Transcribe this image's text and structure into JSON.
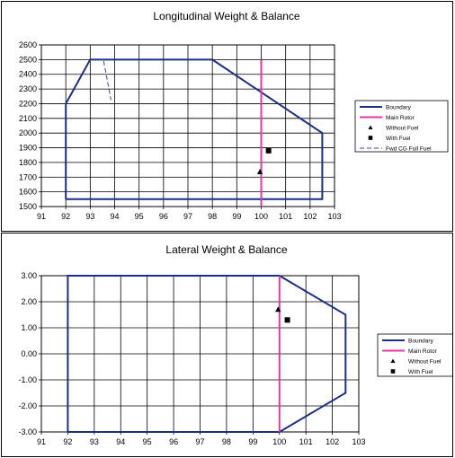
{
  "chart_data": [
    {
      "type": "line",
      "title": "Longitudinal Weight & Balance",
      "xlabel": "",
      "ylabel": "",
      "xlim": [
        91,
        103
      ],
      "ylim": [
        1500,
        2600
      ],
      "x_ticks": [
        "91",
        "92",
        "93",
        "94",
        "95",
        "96",
        "97",
        "98",
        "99",
        "100",
        "101",
        "102",
        "103"
      ],
      "y_ticks": [
        "1500",
        "1600",
        "1700",
        "1800",
        "1900",
        "2000",
        "2100",
        "2200",
        "2300",
        "2400",
        "2500",
        "2600"
      ],
      "grid": true,
      "legend_position": "right",
      "series": [
        {
          "name": "Boundary",
          "kind": "line",
          "color": "#1c2f86",
          "points": [
            [
              92,
              1550
            ],
            [
              92,
              2200
            ],
            [
              93,
              2500
            ],
            [
              98,
              2500
            ],
            [
              102.5,
              2000
            ],
            [
              102.5,
              1550
            ],
            [
              92,
              1550
            ]
          ]
        },
        {
          "name": "Main Rotor",
          "kind": "line",
          "color": "#e0399f",
          "points": [
            [
              100,
              1500
            ],
            [
              100,
              2500
            ]
          ]
        },
        {
          "name": "Without Fuel",
          "kind": "marker",
          "marker": "triangle",
          "color": "#000000",
          "points": [
            [
              99.95,
              1735
            ]
          ]
        },
        {
          "name": "With Fuel",
          "kind": "marker",
          "marker": "square",
          "color": "#000000",
          "points": [
            [
              100.3,
              1880
            ]
          ]
        },
        {
          "name": "Fwd CG Full Fuel",
          "kind": "dashed",
          "color": "#3b3fa8",
          "points": [
            [
              93.55,
              2490
            ],
            [
              93.85,
              2225
            ]
          ]
        }
      ]
    },
    {
      "type": "line",
      "title": "Lateral Weight & Balance",
      "xlabel": "",
      "ylabel": "",
      "xlim": [
        91,
        103
      ],
      "ylim": [
        -3,
        3
      ],
      "x_ticks": [
        "91",
        "92",
        "93",
        "94",
        "95",
        "96",
        "97",
        "98",
        "99",
        "100",
        "101",
        "102",
        "103"
      ],
      "y_ticks": [
        "-3.00",
        "-2.00",
        "-1.00",
        "0.00",
        "1.00",
        "2.00",
        "3.00"
      ],
      "grid": true,
      "legend_position": "right",
      "series": [
        {
          "name": "Boundary",
          "kind": "line",
          "color": "#1c2f86",
          "points": [
            [
              92,
              -3
            ],
            [
              92,
              3
            ],
            [
              100,
              3
            ],
            [
              102.5,
              1.5
            ],
            [
              102.5,
              -1.5
            ],
            [
              100,
              -3
            ],
            [
              92,
              -3
            ]
          ]
        },
        {
          "name": "Main Rotor",
          "kind": "line",
          "color": "#e0399f",
          "points": [
            [
              100,
              -3
            ],
            [
              100,
              3
            ]
          ]
        },
        {
          "name": "Without Fuel",
          "kind": "marker",
          "marker": "triangle",
          "color": "#000000",
          "points": [
            [
              99.95,
              1.7
            ]
          ]
        },
        {
          "name": "With Fuel",
          "kind": "marker",
          "marker": "square",
          "color": "#000000",
          "points": [
            [
              100.3,
              1.3
            ]
          ]
        }
      ]
    }
  ]
}
